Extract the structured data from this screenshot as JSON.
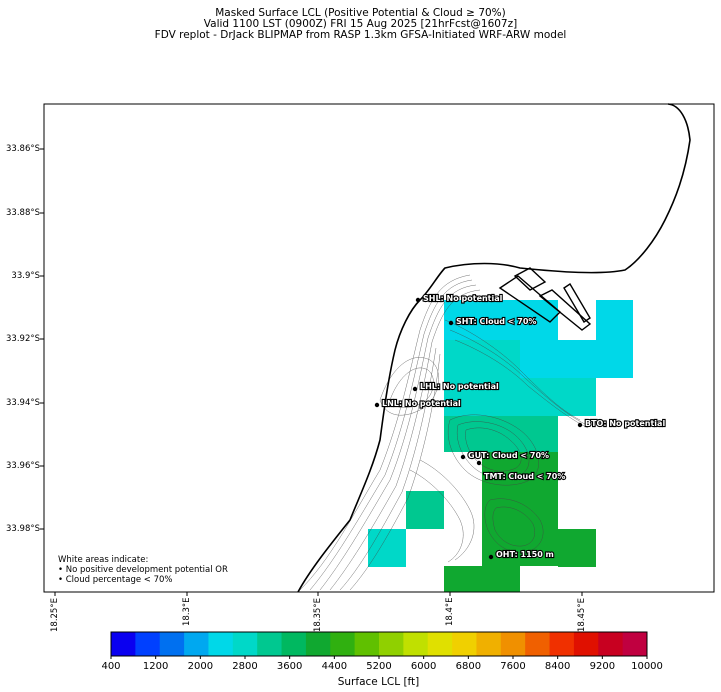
{
  "title": {
    "line1": "Masked Surface LCL (Positive Potential & Cloud ≥ 70%)",
    "line2": "Valid 1100 LST (0900Z) FRI 15 Aug 2025 [21hrFcst@1607z]",
    "line3": "FDV replot - DrJack BLIPMAP from RASP 1.3km GFSA-Initiated WRF-ARW model"
  },
  "axes": {
    "y_ticks": [
      "33.86°S",
      "33.88°S",
      "33.9°S",
      "33.92°S",
      "33.94°S",
      "33.96°S",
      "33.98°S"
    ],
    "x_ticks": [
      "18.25°E",
      "18.3°E",
      "18.35°E",
      "18.4°E",
      "18.45°E"
    ]
  },
  "stations": [
    {
      "code": "SHL",
      "label": "SHL: No potential"
    },
    {
      "code": "SHT",
      "label": "SHT: Cloud < 70%"
    },
    {
      "code": "LHL",
      "label": "LHL: No potential"
    },
    {
      "code": "LNL",
      "label": "LNL: No potential"
    },
    {
      "code": "BTO",
      "label": "BTO: No potential"
    },
    {
      "code": "GUT",
      "label": "GUT: Cloud < 70%"
    },
    {
      "code": "TMT",
      "label": "TMT: Cloud < 70%"
    },
    {
      "code": "OHT",
      "label": "OHT: 1150 m"
    }
  ],
  "note": {
    "line1": "White areas indicate:",
    "line2": "• No positive development potential OR",
    "line3": "• Cloud percentage < 70%"
  },
  "colorbar": {
    "label": "Surface LCL [ft]",
    "ticks": [
      "400",
      "1200",
      "2000",
      "2800",
      "3600",
      "4400",
      "5200",
      "6000",
      "6800",
      "7600",
      "8400",
      "9200",
      "10000"
    ],
    "colors": [
      "#0a00f0",
      "#0040ff",
      "#0070f0",
      "#00a8f0",
      "#00d8e8",
      "#00d8c8",
      "#00c890",
      "#00b860",
      "#10a830",
      "#30b010",
      "#60c000",
      "#90d000",
      "#c0e000",
      "#e0e000",
      "#f0d000",
      "#f0b000",
      "#f09000",
      "#f06000",
      "#f03000",
      "#e01000",
      "#c80020",
      "#c00040"
    ]
  },
  "colors": {
    "cyan": "#00d8e8",
    "teal": "#00d8c8",
    "seagreen": "#00c890",
    "green": "#10a830"
  }
}
